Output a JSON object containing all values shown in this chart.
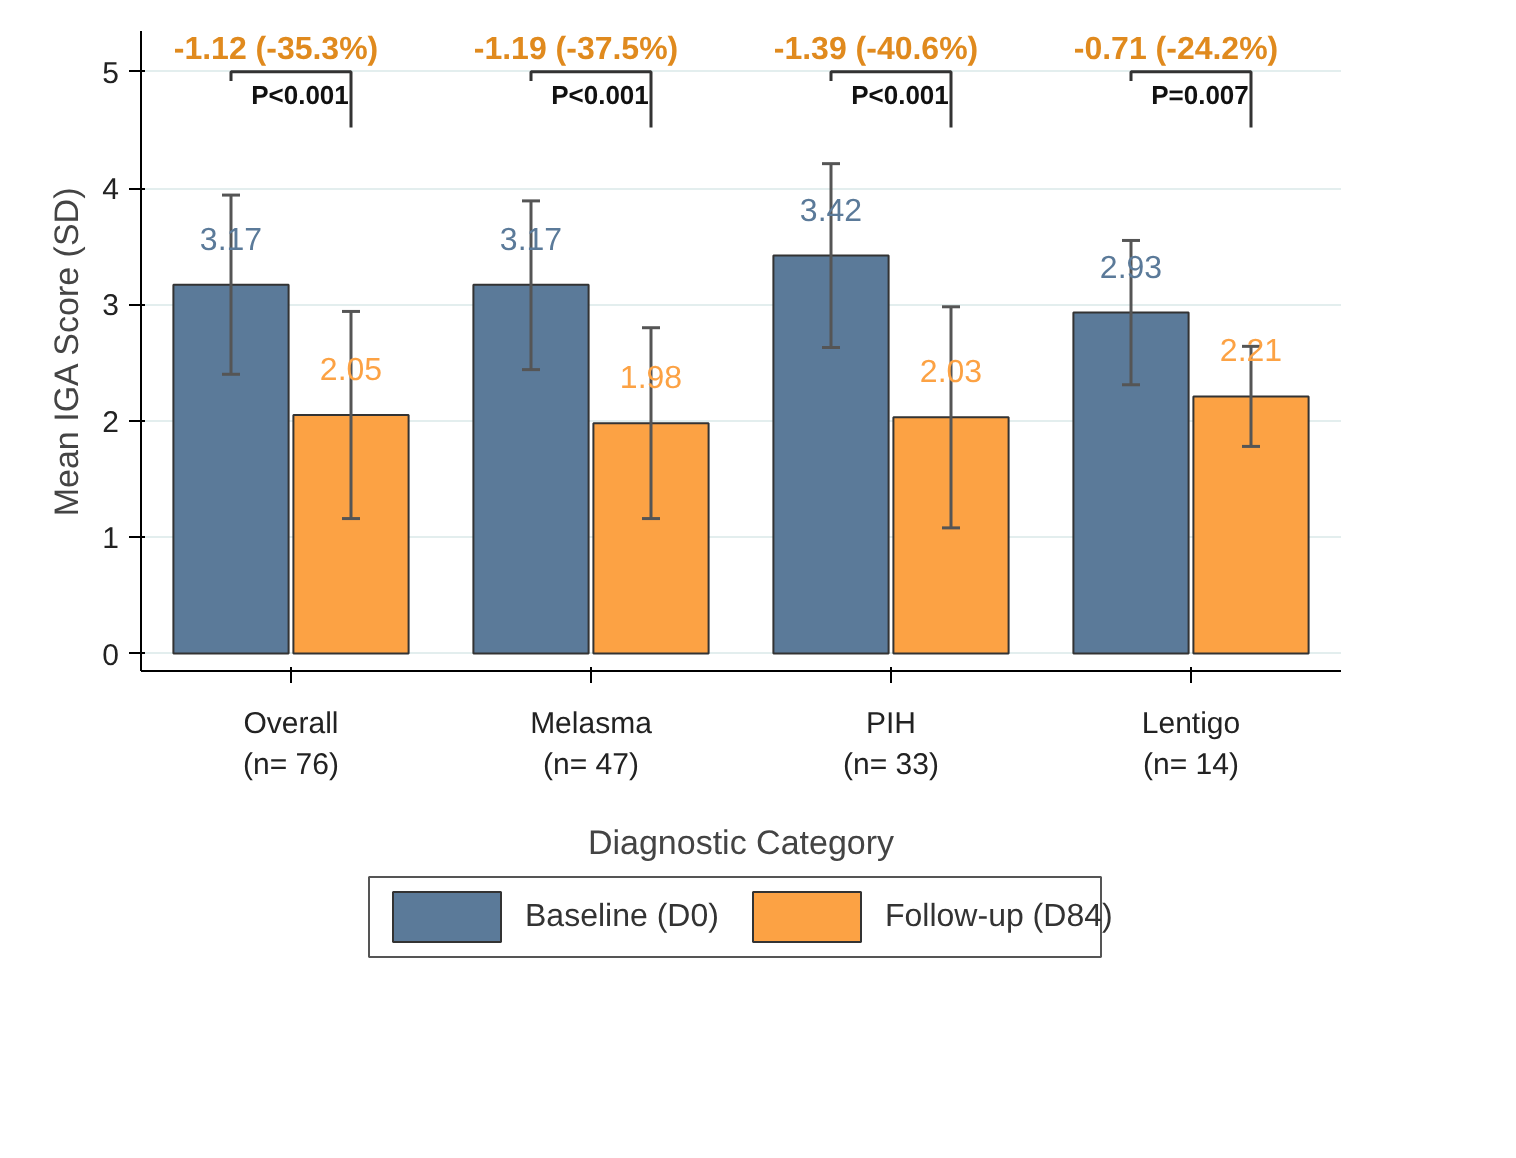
{
  "chart_data": {
    "type": "bar",
    "xlabel": "Diagnostic Category",
    "ylabel": "Mean IGA Score (SD)",
    "categories": [
      "Overall\n(n= 76)",
      "Melasma\n(n= 47)",
      "PIH\n(n= 33)",
      "Lentigo\n(n= 14)"
    ],
    "series": [
      {
        "name": "Baseline (D0)",
        "color": "#5b7a99",
        "values": [
          3.17,
          3.17,
          3.42,
          2.93
        ],
        "errors": [
          [
            2.4,
            3.94
          ],
          [
            2.44,
            3.89
          ],
          [
            2.63,
            4.21
          ],
          [
            2.31,
            3.55
          ]
        ]
      },
      {
        "name": "Follow-up (D84)",
        "color": "#fca244",
        "values": [
          2.05,
          1.98,
          2.03,
          2.21
        ],
        "errors": [
          [
            1.16,
            2.94
          ],
          [
            1.16,
            2.8
          ],
          [
            1.08,
            2.98
          ],
          [
            1.78,
            2.64
          ]
        ]
      }
    ],
    "data_labels": true,
    "ylim": [
      -0.15,
      5.35
    ],
    "yticks": [
      0,
      1,
      2,
      3,
      4,
      5
    ],
    "grid": "y",
    "legend": "bottom",
    "annotations": [
      "-1.12 (-35.3%)",
      "P<0.001",
      "-1.19 (-37.5%)",
      "P<0.001",
      "-1.39 (-40.6%)",
      "P<0.001",
      "-0.71 (-24.2%)",
      "P=0.007"
    ]
  }
}
